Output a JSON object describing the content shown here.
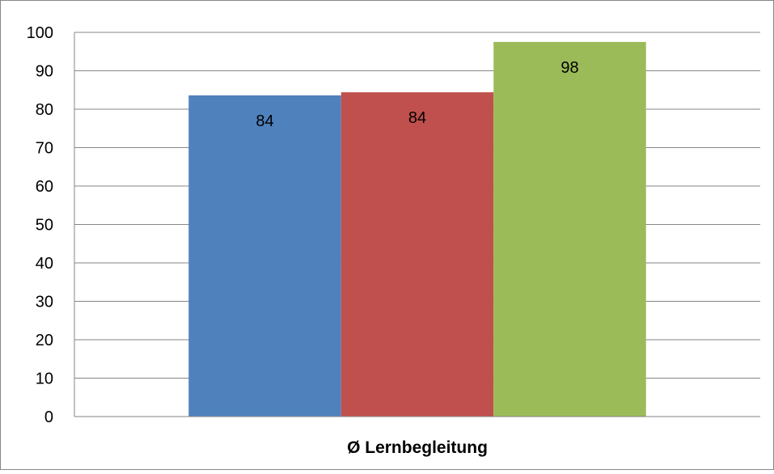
{
  "chart_data": {
    "type": "bar",
    "categories": [
      "Ø Lernbegleitung"
    ],
    "series": [
      {
        "values": [
          83.6
        ],
        "label": "84",
        "color": "#4F81BD"
      },
      {
        "values": [
          84.4
        ],
        "label": "84",
        "color": "#C0504D"
      },
      {
        "values": [
          97.5
        ],
        "label": "98",
        "color": "#9BBB59"
      }
    ],
    "xlabel": "Ø Lernbegleitung",
    "ylabel": "",
    "ylim": [
      0,
      100
    ],
    "yticks": [
      "0",
      "10",
      "20",
      "30",
      "40",
      "50",
      "60",
      "70",
      "80",
      "90",
      "100"
    ],
    "grid": true,
    "legend": "none"
  }
}
